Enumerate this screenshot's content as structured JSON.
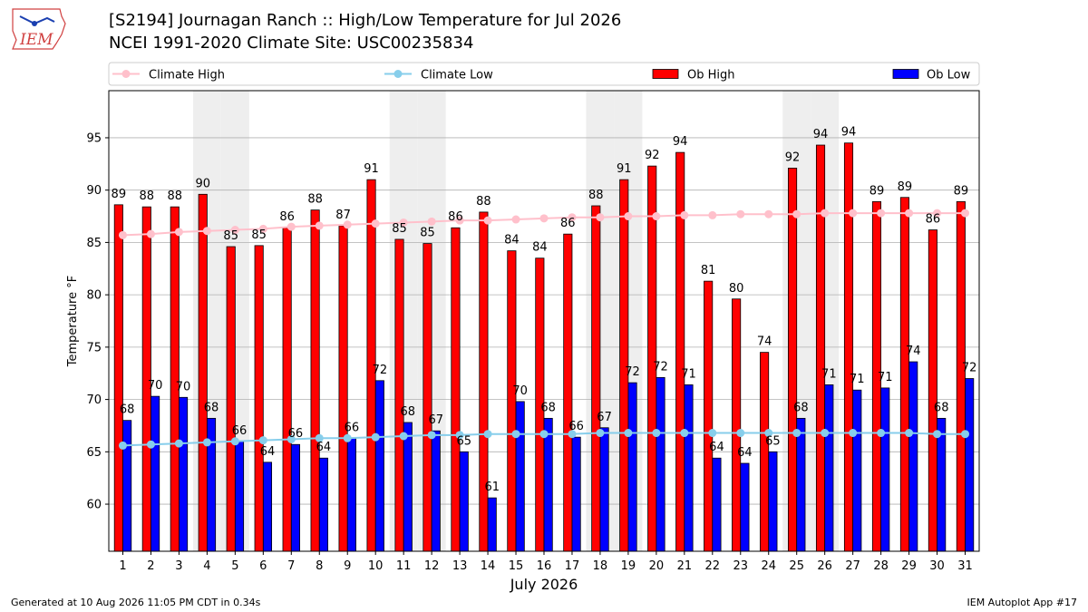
{
  "header": {
    "title": "[S2194] Journagan Ranch :: High/Low Temperature for Jul 2026",
    "subtitle": "NCEI 1991-2020 Climate Site: USC00235834",
    "logo_text": "IEM"
  },
  "footer": {
    "generated": "Generated at 10 Aug 2026 11:05 PM CDT in 0.34s",
    "app": "IEM Autoplot App #17"
  },
  "colors": {
    "ob_high": "#ff0000",
    "ob_low": "#0000ff",
    "climate_high": "#ffc0cb",
    "climate_low": "#87ceeb",
    "weekend_band": "#eeeeee",
    "grid": "#b0b0b0"
  },
  "chart_data": {
    "type": "bar",
    "title": "[S2194] Journagan Ranch :: High/Low Temperature for Jul 2026",
    "subtitle": "NCEI 1991-2020 Climate Site: USC00235834",
    "xlabel": "July 2026",
    "ylabel": "Temperature °F",
    "categories": [
      "1",
      "2",
      "3",
      "4",
      "5",
      "6",
      "7",
      "8",
      "9",
      "10",
      "11",
      "12",
      "13",
      "14",
      "15",
      "16",
      "17",
      "18",
      "19",
      "20",
      "21",
      "22",
      "23",
      "24",
      "25",
      "26",
      "27",
      "28",
      "29",
      "30",
      "31"
    ],
    "ylim": [
      55.5,
      99.5
    ],
    "yticks": [
      60,
      65,
      70,
      75,
      80,
      85,
      90,
      95
    ],
    "grid": true,
    "legend_position": "top",
    "shaded_days": [
      4,
      5,
      11,
      12,
      18,
      19,
      25,
      26
    ],
    "series": [
      {
        "name": "Ob High",
        "kind": "bar",
        "color": "#ff0000",
        "values": [
          89,
          88,
          88,
          90,
          85,
          85,
          86,
          88,
          87,
          91,
          85,
          85,
          86,
          88,
          84,
          84,
          86,
          88,
          91,
          92,
          94,
          81,
          80,
          74,
          92,
          94,
          94,
          89,
          89,
          86,
          89
        ],
        "plotted": [
          88.6,
          88.4,
          88.4,
          89.6,
          84.6,
          84.7,
          86.4,
          88.1,
          86.6,
          91.0,
          85.3,
          84.9,
          86.4,
          87.9,
          84.2,
          83.5,
          85.8,
          88.5,
          91.0,
          92.3,
          93.6,
          81.3,
          79.6,
          74.5,
          92.1,
          94.3,
          94.5,
          88.9,
          89.3,
          86.2,
          88.9
        ]
      },
      {
        "name": "Ob Low",
        "kind": "bar",
        "color": "#0000ff",
        "values": [
          68,
          70,
          70,
          68,
          66,
          64,
          66,
          64,
          66,
          72,
          68,
          67,
          65,
          61,
          70,
          68,
          66,
          67,
          72,
          72,
          71,
          64,
          64,
          65,
          68,
          71,
          71,
          71,
          74,
          68,
          72
        ],
        "plotted": [
          68.0,
          70.3,
          70.2,
          68.2,
          66.0,
          64.0,
          65.7,
          64.4,
          66.3,
          71.8,
          67.8,
          67.0,
          65.0,
          60.6,
          69.8,
          68.2,
          66.4,
          67.3,
          71.6,
          72.1,
          71.4,
          64.4,
          63.9,
          65.0,
          68.2,
          71.4,
          70.9,
          71.1,
          73.6,
          68.2,
          72.0
        ]
      },
      {
        "name": "Climate High",
        "kind": "line",
        "color": "#ffc0cb",
        "values": [
          85.7,
          85.8,
          86.0,
          86.1,
          86.2,
          86.3,
          86.5,
          86.6,
          86.7,
          86.8,
          86.9,
          87.0,
          87.1,
          87.1,
          87.2,
          87.3,
          87.4,
          87.4,
          87.5,
          87.5,
          87.6,
          87.6,
          87.7,
          87.7,
          87.7,
          87.8,
          87.8,
          87.8,
          87.8,
          87.8,
          87.8
        ]
      },
      {
        "name": "Climate Low",
        "kind": "line",
        "color": "#87ceeb",
        "values": [
          65.6,
          65.7,
          65.8,
          65.9,
          66.0,
          66.1,
          66.2,
          66.3,
          66.3,
          66.4,
          66.5,
          66.6,
          66.6,
          66.7,
          66.7,
          66.7,
          66.7,
          66.8,
          66.8,
          66.8,
          66.8,
          66.8,
          66.8,
          66.8,
          66.8,
          66.8,
          66.8,
          66.8,
          66.8,
          66.7,
          66.7
        ]
      }
    ]
  }
}
